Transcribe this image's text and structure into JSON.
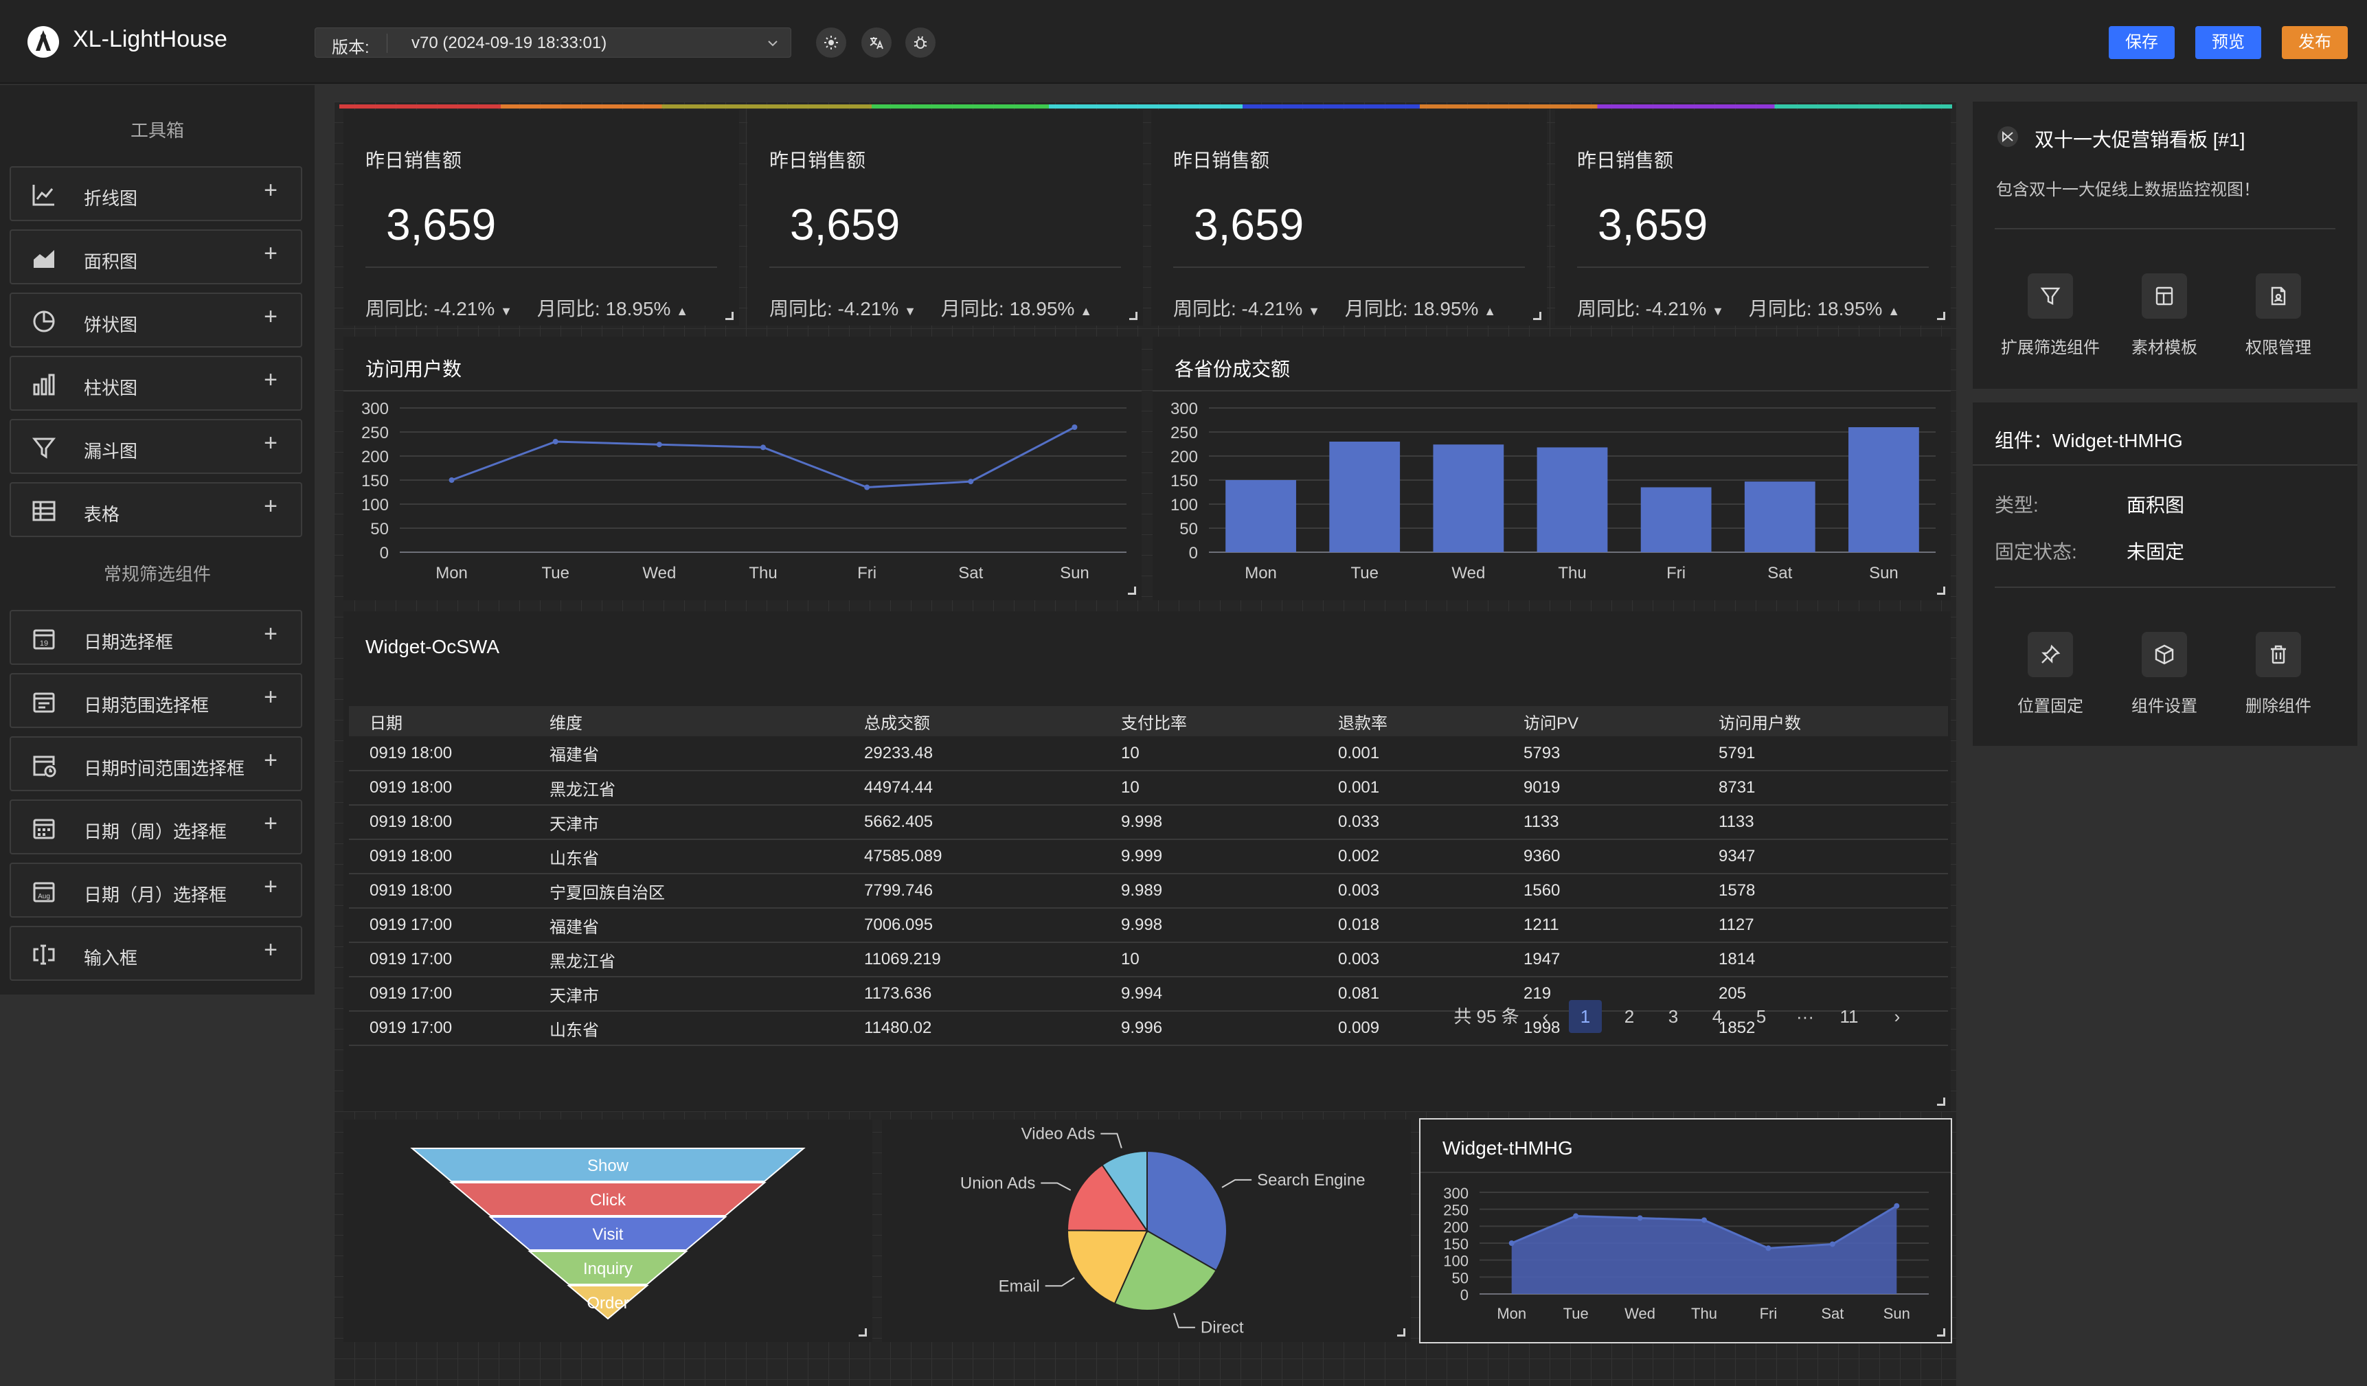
{
  "header": {
    "app_title": "XL-LightHouse",
    "version_label": "版本:",
    "version_value": "v70 (2024-09-19 18:33:01)",
    "save": "保存",
    "preview": "预览",
    "publish": "发布",
    "colors": {
      "save": "#3370ff",
      "preview": "#3370ff",
      "publish": "#e8892c"
    }
  },
  "toolbox": {
    "title": "工具箱",
    "charts": [
      {
        "label": "折线图",
        "icon": "line-chart-icon"
      },
      {
        "label": "面积图",
        "icon": "area-chart-icon"
      },
      {
        "label": "饼状图",
        "icon": "pie-chart-icon"
      },
      {
        "label": "柱状图",
        "icon": "bar-chart-icon"
      },
      {
        "label": "漏斗图",
        "icon": "funnel-icon"
      },
      {
        "label": "表格",
        "icon": "table-icon"
      }
    ],
    "filter_title": "常规筛选组件",
    "filters": [
      {
        "label": "日期选择框",
        "icon": "calendar-icon"
      },
      {
        "label": "日期范围选择框",
        "icon": "date-range-icon"
      },
      {
        "label": "日期时间范围选择框",
        "icon": "calendar-clock-icon"
      },
      {
        "label": "日期（周）选择框",
        "icon": "calendar-week-icon"
      },
      {
        "label": "日期（月）选择框",
        "icon": "calendar-month-icon"
      },
      {
        "label": "输入框",
        "icon": "input-icon"
      }
    ],
    "plus": "+"
  },
  "stats": [
    {
      "label": "昨日销售额",
      "value": "3,659",
      "wow": "周同比: -4.21%",
      "mom": "月同比: 18.95%"
    },
    {
      "label": "昨日销售额",
      "value": "3,659",
      "wow": "周同比: -4.21%",
      "mom": "月同比: 18.95%"
    },
    {
      "label": "昨日销售额",
      "value": "3,659",
      "wow": "周同比: -4.21%",
      "mom": "月同比: 18.95%"
    },
    {
      "label": "昨日销售额",
      "value": "3,659",
      "wow": "周同比: -4.21%",
      "mom": "月同比: 18.95%"
    }
  ],
  "widgets": {
    "line_title": "访问用户数",
    "bar_title": "各省份成交额",
    "table_title": "Widget-OcSWA",
    "area_title": "Widget-tHMHG"
  },
  "chart_data": [
    {
      "type": "line",
      "title": "访问用户数",
      "categories": [
        "Mon",
        "Tue",
        "Wed",
        "Thu",
        "Fri",
        "Sat",
        "Sun"
      ],
      "values": [
        150,
        230,
        224,
        218,
        135,
        147,
        260
      ],
      "ylim": [
        0,
        300
      ],
      "yticks": [
        "0",
        "50",
        "100",
        "150",
        "200",
        "250",
        "300"
      ],
      "grid": true
    },
    {
      "type": "bar",
      "title": "各省份成交额",
      "categories": [
        "Mon",
        "Tue",
        "Wed",
        "Thu",
        "Fri",
        "Sat",
        "Sun"
      ],
      "values": [
        150,
        230,
        224,
        218,
        135,
        147,
        260
      ],
      "ylim": [
        0,
        300
      ],
      "yticks": [
        "0",
        "50",
        "100",
        "150",
        "200",
        "250",
        "300"
      ],
      "grid": true
    },
    {
      "type": "funnel",
      "categories": [
        "Show",
        "Click",
        "Visit",
        "Inquiry",
        "Order"
      ],
      "values": [
        100,
        80,
        60,
        40,
        20
      ],
      "colors": [
        "#74b9e0",
        "#e06464",
        "#5d76d6",
        "#9bcd79",
        "#f0c866"
      ]
    },
    {
      "type": "pie",
      "categories": [
        "Search Engine",
        "Direct",
        "Email",
        "Union Ads",
        "Video Ads"
      ],
      "values": [
        1048,
        735,
        580,
        484,
        300
      ],
      "colors": [
        "#5470c6",
        "#91cc75",
        "#fac858",
        "#ee6666",
        "#73c0de"
      ]
    },
    {
      "type": "area",
      "title": "Widget-tHMHG",
      "categories": [
        "Mon",
        "Tue",
        "Wed",
        "Thu",
        "Fri",
        "Sat",
        "Sun"
      ],
      "values": [
        150,
        230,
        224,
        218,
        135,
        147,
        260
      ],
      "ylim": [
        0,
        300
      ],
      "yticks": [
        "0",
        "50",
        "100",
        "150",
        "200",
        "250",
        "300"
      ],
      "grid": true
    }
  ],
  "table": {
    "columns": [
      "日期",
      "维度",
      "总成交额",
      "支付比率",
      "退款率",
      "访问PV",
      "访问用户数"
    ],
    "rows": [
      [
        "0919 18:00",
        "福建省",
        "29233.48",
        "10",
        "0.001",
        "5793",
        "5791"
      ],
      [
        "0919 18:00",
        "黑龙江省",
        "44974.44",
        "10",
        "0.001",
        "9019",
        "8731"
      ],
      [
        "0919 18:00",
        "天津市",
        "5662.405",
        "9.998",
        "0.033",
        "1133",
        "1133"
      ],
      [
        "0919 18:00",
        "山东省",
        "47585.089",
        "9.999",
        "0.002",
        "9360",
        "9347"
      ],
      [
        "0919 18:00",
        "宁夏回族自治区",
        "7799.746",
        "9.989",
        "0.003",
        "1560",
        "1578"
      ],
      [
        "0919 17:00",
        "福建省",
        "7006.095",
        "9.998",
        "0.018",
        "1211",
        "1127"
      ],
      [
        "0919 17:00",
        "黑龙江省",
        "11069.219",
        "10",
        "0.003",
        "1947",
        "1814"
      ],
      [
        "0919 17:00",
        "天津市",
        "1173.636",
        "9.994",
        "0.081",
        "219",
        "205"
      ],
      [
        "0919 17:00",
        "山东省",
        "11480.02",
        "9.996",
        "0.009",
        "1998",
        "1852"
      ]
    ],
    "total": "共 95 条",
    "pages": [
      "1",
      "2",
      "3",
      "4",
      "5",
      "···",
      "11"
    ],
    "current_page": "1"
  },
  "right": {
    "board_title": "双十一大促营销看板 [#1]",
    "board_desc": "包含双十一大促线上数据监控视图！",
    "board_actions": [
      {
        "label": "扩展筛选组件",
        "icon": "filter-icon"
      },
      {
        "label": "素材模板",
        "icon": "template-icon"
      },
      {
        "label": "权限管理",
        "icon": "permission-icon"
      }
    ],
    "widget_title": "组件：Widget-tHMHG",
    "type_label": "类型:",
    "type_value": "面积图",
    "fix_label": "固定状态:",
    "fix_value": "未固定",
    "widget_actions": [
      {
        "label": "位置固定",
        "icon": "pin-icon"
      },
      {
        "label": "组件设置",
        "icon": "cube-icon"
      },
      {
        "label": "删除组件",
        "icon": "trash-icon"
      }
    ]
  }
}
